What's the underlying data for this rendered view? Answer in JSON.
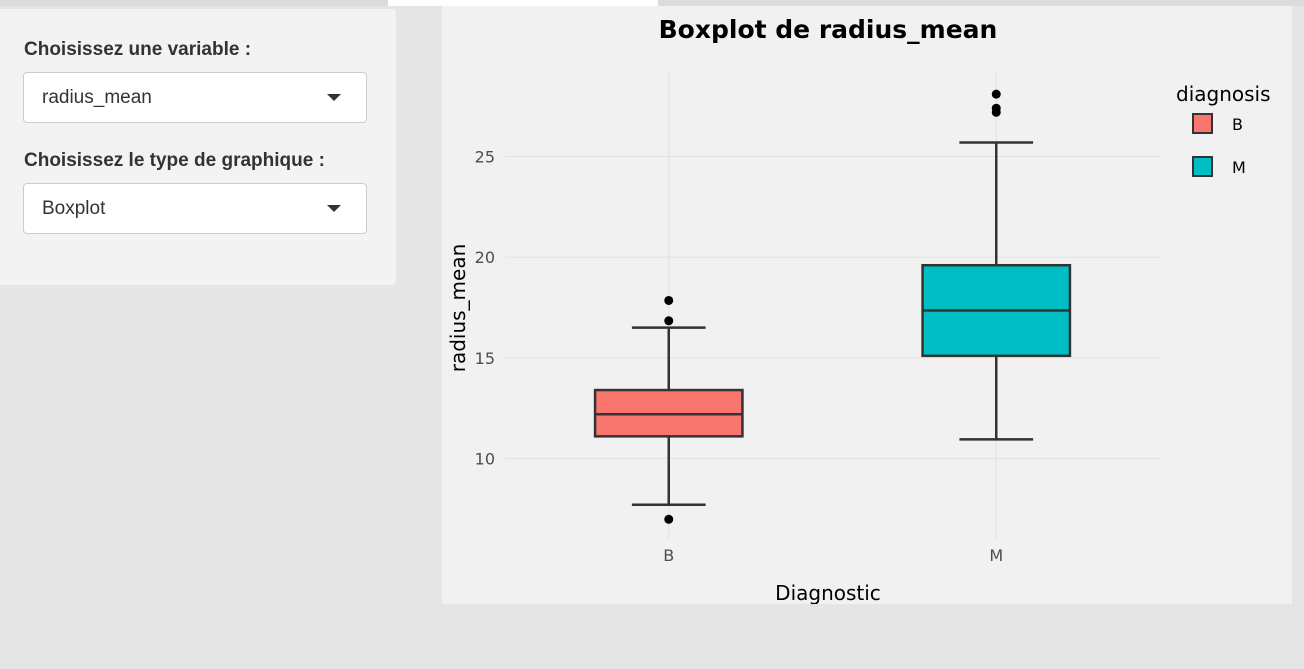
{
  "controls": {
    "variable_label": "Choisissez une variable :",
    "variable_value": "radius_mean",
    "chart_type_label": "Choisissez le type de graphique :",
    "chart_type_value": "Boxplot"
  },
  "chart_data": {
    "type": "boxplot",
    "title": "Boxplot de radius_mean",
    "xlabel": "Diagnostic",
    "ylabel": "radius_mean",
    "categories": [
      "B",
      "M"
    ],
    "ylim": [
      6.0,
      29.2
    ],
    "yticks": [
      10,
      15,
      20,
      25
    ],
    "grid": true,
    "legend": {
      "title": "diagnosis",
      "position": "top-right",
      "entries": [
        "B",
        "M"
      ]
    },
    "boxes": [
      {
        "category": "B",
        "whisker_low": 7.7,
        "q1": 11.1,
        "median": 12.2,
        "q3": 13.4,
        "whisker_high": 16.5,
        "outliers": [
          6.98,
          16.84,
          17.85
        ],
        "color": "#F8766D"
      },
      {
        "category": "M",
        "whisker_low": 10.95,
        "q1": 15.1,
        "median": 17.35,
        "q3": 19.6,
        "whisker_high": 25.7,
        "outliers": [
          27.2,
          27.4,
          28.1
        ],
        "color": "#00BFC4"
      }
    ]
  }
}
